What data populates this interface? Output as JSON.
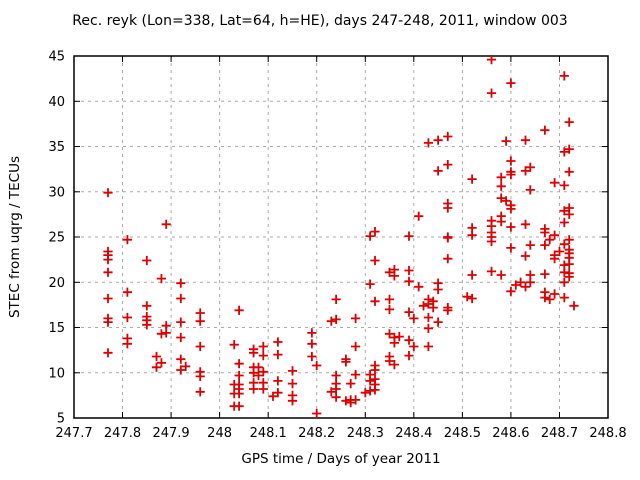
{
  "title": "Rec. reyk (Lon=338, Lat=64, h=HE), days 247-248, 2011, window 003",
  "chart_data": {
    "type": "scatter",
    "title": "Rec. reyk (Lon=338, Lat=64, h=HE), days 247-248, 2011, window 003",
    "xlabel": "GPS time / Days of year 2011",
    "ylabel": "STEC from uqrg / TECUs",
    "xlim": [
      247.7,
      248.8
    ],
    "ylim": [
      5,
      45
    ],
    "xticks": [
      "247.7",
      "247.8",
      "247.9",
      "248",
      "248.1",
      "248.2",
      "248.3",
      "248.4",
      "248.5",
      "248.6",
      "248.7",
      "248.8"
    ],
    "yticks": [
      "5",
      "10",
      "15",
      "20",
      "25",
      "30",
      "35",
      "40",
      "45"
    ],
    "grid": true,
    "legend_position": "none",
    "marker": "plus",
    "marker_color": "#dd0000",
    "points": [
      [
        247.77,
        29.9
      ],
      [
        247.89,
        26.4
      ],
      [
        247.81,
        24.7
      ],
      [
        247.77,
        23.4
      ],
      [
        247.77,
        23.0
      ],
      [
        247.77,
        22.5
      ],
      [
        247.85,
        22.4
      ],
      [
        247.77,
        21.1
      ],
      [
        247.88,
        20.4
      ],
      [
        247.92,
        19.9
      ],
      [
        247.81,
        18.9
      ],
      [
        247.77,
        18.2
      ],
      [
        247.92,
        18.2
      ],
      [
        247.85,
        17.4
      ],
      [
        247.85,
        16.2
      ],
      [
        247.85,
        15.8
      ],
      [
        247.85,
        15.3
      ],
      [
        247.77,
        16.0
      ],
      [
        247.77,
        15.6
      ],
      [
        247.81,
        16.1
      ],
      [
        247.96,
        16.6
      ],
      [
        247.96,
        15.7
      ],
      [
        247.92,
        15.6
      ],
      [
        247.89,
        15.2
      ],
      [
        247.89,
        14.4
      ],
      [
        247.81,
        13.8
      ],
      [
        247.81,
        13.2
      ],
      [
        247.88,
        14.3
      ],
      [
        247.92,
        13.9
      ],
      [
        247.77,
        12.2
      ],
      [
        247.87,
        11.8
      ],
      [
        247.88,
        11.1
      ],
      [
        247.87,
        10.6
      ],
      [
        247.92,
        11.5
      ],
      [
        247.92,
        10.3
      ],
      [
        247.93,
        10.7
      ],
      [
        247.96,
        12.9
      ],
      [
        247.96,
        10.1
      ],
      [
        247.96,
        9.6
      ],
      [
        247.96,
        7.9
      ],
      [
        248.04,
        16.9
      ],
      [
        248.24,
        18.1
      ],
      [
        248.23,
        15.7
      ],
      [
        248.24,
        15.9
      ],
      [
        248.19,
        14.4
      ],
      [
        248.03,
        13.1
      ],
      [
        248.07,
        12.6
      ],
      [
        248.09,
        12.9
      ],
      [
        248.09,
        11.9
      ],
      [
        248.07,
        12.2
      ],
      [
        248.19,
        13.2
      ],
      [
        248.19,
        11.8
      ],
      [
        248.04,
        11.0
      ],
      [
        248.07,
        10.6
      ],
      [
        248.08,
        10.6
      ],
      [
        248.09,
        10.1
      ],
      [
        248.07,
        10.0
      ],
      [
        248.08,
        9.7
      ],
      [
        248.04,
        9.7
      ],
      [
        248.2,
        10.8
      ],
      [
        248.12,
        13.4
      ],
      [
        248.12,
        12.0
      ],
      [
        248.12,
        9.1
      ],
      [
        248.12,
        7.8
      ],
      [
        248.11,
        7.4
      ],
      [
        248.09,
        8.9
      ],
      [
        248.07,
        8.9
      ],
      [
        248.07,
        8.2
      ],
      [
        248.09,
        8.2
      ],
      [
        248.04,
        8.7
      ],
      [
        248.03,
        8.7
      ],
      [
        248.04,
        8.2
      ],
      [
        248.03,
        7.7
      ],
      [
        248.04,
        7.7
      ],
      [
        248.03,
        6.3
      ],
      [
        248.04,
        6.3
      ],
      [
        248.15,
        10.2
      ],
      [
        248.15,
        8.8
      ],
      [
        248.15,
        7.5
      ],
      [
        248.15,
        6.9
      ],
      [
        248.24,
        9.7
      ],
      [
        248.24,
        8.8
      ],
      [
        248.24,
        8.2
      ],
      [
        248.23,
        7.9
      ],
      [
        248.24,
        7.3
      ],
      [
        248.2,
        5.5
      ],
      [
        248.32,
        17.9
      ],
      [
        248.35,
        18.1
      ],
      [
        248.35,
        17.0
      ],
      [
        248.43,
        18.1
      ],
      [
        248.43,
        17.6
      ],
      [
        248.44,
        17.9
      ],
      [
        248.44,
        17.2
      ],
      [
        248.42,
        17.4
      ],
      [
        248.47,
        17.2
      ],
      [
        248.47,
        16.9
      ],
      [
        248.39,
        16.7
      ],
      [
        248.4,
        16.0
      ],
      [
        248.28,
        16.0
      ],
      [
        248.43,
        16.1
      ],
      [
        248.45,
        15.6
      ],
      [
        248.43,
        14.9
      ],
      [
        248.35,
        14.3
      ],
      [
        248.36,
        13.9
      ],
      [
        248.37,
        14.0
      ],
      [
        248.36,
        13.3
      ],
      [
        248.39,
        13.6
      ],
      [
        248.4,
        12.9
      ],
      [
        248.43,
        12.9
      ],
      [
        248.28,
        12.9
      ],
      [
        248.39,
        11.9
      ],
      [
        248.35,
        11.8
      ],
      [
        248.35,
        11.3
      ],
      [
        248.36,
        10.9
      ],
      [
        248.26,
        11.5
      ],
      [
        248.26,
        11.2
      ],
      [
        248.32,
        10.8
      ],
      [
        248.32,
        10.3
      ],
      [
        248.31,
        9.8
      ],
      [
        248.32,
        9.3
      ],
      [
        248.31,
        9.1
      ],
      [
        248.32,
        8.7
      ],
      [
        248.32,
        8.1
      ],
      [
        248.28,
        9.8
      ],
      [
        248.27,
        8.8
      ],
      [
        248.3,
        7.8
      ],
      [
        248.31,
        8.0
      ],
      [
        248.26,
        6.9
      ],
      [
        248.27,
        7.0
      ],
      [
        248.28,
        7.0
      ],
      [
        248.27,
        6.7
      ],
      [
        248.52,
        18.2
      ],
      [
        248.51,
        18.4
      ],
      [
        248.32,
        25.6
      ],
      [
        248.31,
        25.1
      ],
      [
        248.39,
        25.1
      ],
      [
        248.47,
        24.9
      ],
      [
        248.52,
        26.0
      ],
      [
        248.52,
        25.2
      ],
      [
        248.47,
        25.0
      ],
      [
        248.32,
        22.4
      ],
      [
        248.47,
        22.6
      ],
      [
        248.36,
        21.4
      ],
      [
        248.35,
        21.1
      ],
      [
        248.36,
        20.7
      ],
      [
        248.39,
        21.3
      ],
      [
        248.39,
        20.1
      ],
      [
        248.52,
        20.8
      ],
      [
        248.31,
        19.8
      ],
      [
        248.41,
        19.5
      ],
      [
        248.45,
        19.9
      ],
      [
        248.45,
        19.2
      ],
      [
        248.41,
        27.3
      ],
      [
        248.47,
        28.7
      ],
      [
        248.47,
        28.2
      ],
      [
        248.52,
        31.4
      ],
      [
        248.43,
        35.4
      ],
      [
        248.45,
        35.7
      ],
      [
        248.47,
        36.1
      ],
      [
        248.45,
        32.3
      ],
      [
        248.47,
        33.0
      ],
      [
        248.56,
        44.6
      ],
      [
        248.6,
        42.0
      ],
      [
        248.56,
        40.9
      ],
      [
        248.71,
        42.8
      ],
      [
        248.72,
        37.7
      ],
      [
        248.67,
        36.8
      ],
      [
        248.59,
        35.6
      ],
      [
        248.63,
        35.7
      ],
      [
        248.71,
        34.4
      ],
      [
        248.72,
        34.7
      ],
      [
        248.6,
        33.4
      ],
      [
        248.6,
        32.2
      ],
      [
        248.63,
        32.3
      ],
      [
        248.64,
        32.7
      ],
      [
        248.72,
        32.2
      ],
      [
        248.58,
        31.6
      ],
      [
        248.6,
        31.9
      ],
      [
        248.58,
        30.6
      ],
      [
        248.69,
        31.0
      ],
      [
        248.71,
        30.7
      ],
      [
        248.64,
        30.2
      ],
      [
        248.58,
        29.3
      ],
      [
        248.59,
        29.0
      ],
      [
        248.6,
        28.5
      ],
      [
        248.6,
        28.1
      ],
      [
        248.58,
        27.3
      ],
      [
        248.58,
        26.7
      ],
      [
        248.72,
        27.5
      ],
      [
        248.71,
        27.9
      ],
      [
        248.72,
        28.2
      ],
      [
        248.71,
        26.6
      ],
      [
        248.56,
        26.8
      ],
      [
        248.56,
        26.2
      ],
      [
        248.56,
        25.5
      ],
      [
        248.63,
        26.4
      ],
      [
        248.6,
        26.1
      ],
      [
        248.56,
        25.0
      ],
      [
        248.56,
        24.5
      ],
      [
        248.67,
        25.9
      ],
      [
        248.67,
        25.5
      ],
      [
        248.69,
        25.2
      ],
      [
        248.68,
        24.7
      ],
      [
        248.71,
        24.2
      ],
      [
        248.67,
        24.1
      ],
      [
        248.64,
        24.1
      ],
      [
        248.69,
        23.0
      ],
      [
        248.69,
        22.6
      ],
      [
        248.63,
        22.9
      ],
      [
        248.6,
        23.8
      ],
      [
        248.72,
        23.2
      ],
      [
        248.72,
        22.0
      ],
      [
        248.72,
        21.0
      ],
      [
        248.71,
        21.1
      ],
      [
        248.56,
        21.2
      ],
      [
        248.58,
        20.8
      ],
      [
        248.64,
        20.8
      ],
      [
        248.67,
        20.9
      ],
      [
        248.71,
        20.0
      ],
      [
        248.62,
        20.0
      ],
      [
        248.64,
        20.0
      ],
      [
        248.63,
        19.5
      ],
      [
        248.61,
        19.7
      ],
      [
        248.6,
        19.0
      ],
      [
        248.67,
        18.9
      ],
      [
        248.69,
        18.7
      ],
      [
        248.72,
        20.6
      ],
      [
        248.71,
        21.9
      ],
      [
        248.72,
        24.7
      ],
      [
        248.7,
        23.4
      ],
      [
        248.72,
        23.6
      ],
      [
        248.72,
        22.7
      ],
      [
        248.67,
        18.3
      ],
      [
        248.68,
        18.1
      ],
      [
        248.71,
        18.3
      ],
      [
        248.73,
        17.4
      ]
    ]
  }
}
